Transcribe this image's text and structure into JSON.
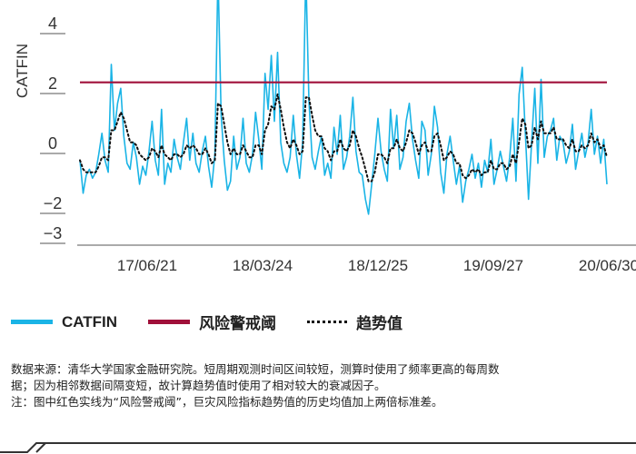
{
  "chart_data": {
    "type": "line",
    "ylabel": "CATFIN",
    "yticks": [
      -3,
      -2,
      0,
      2,
      4
    ],
    "ylim": [
      -3.2,
      5
    ],
    "xticks": [
      "17/06/21",
      "18/03/24",
      "18/12/25",
      "19/09/27",
      "20/06/30"
    ],
    "threshold": {
      "name": "风险警戒阈",
      "value": 2.1,
      "color": "#a0103a"
    },
    "series": [
      {
        "name": "CATFIN",
        "color": "#1ab4e6",
        "values": [
          -0.5,
          -1.6,
          -1.0,
          -0.8,
          -1.1,
          -0.9,
          -0.3,
          0.4,
          -0.5,
          -0.9,
          2.7,
          0.5,
          1.4,
          1.9,
          0.3,
          -0.6,
          -0.8,
          0.1,
          -0.4,
          -1.3,
          -0.7,
          -1.0,
          -0.2,
          0.8,
          -0.5,
          -1.0,
          1.2,
          -1.3,
          -0.6,
          -0.9,
          0.2,
          -0.4,
          -0.8,
          0.1,
          0.9,
          -0.5,
          0.4,
          -0.6,
          -0.9,
          -0.2,
          0.3,
          -0.7,
          -1.4,
          -0.3,
          5.8,
          1.0,
          -0.5,
          -1.5,
          -1.2,
          0.3,
          -0.8,
          -0.4,
          0.9,
          -0.6,
          -0.9,
          -0.3,
          1.1,
          0.2,
          -0.8,
          2.4,
          1.2,
          3.0,
          0.8,
          3.1,
          0.1,
          -0.6,
          -0.9,
          -0.4,
          1.0,
          -0.3,
          -1.1,
          0.1,
          5.8,
          1.5,
          -0.4,
          -0.8,
          -0.2,
          0.3,
          -1.0,
          -0.6,
          -1.1,
          0.6,
          -0.3,
          1.0,
          -0.8,
          -0.4,
          0.3,
          1.6,
          -0.2,
          -0.9,
          -1.0,
          -1.8,
          -2.3,
          -1.3,
          -0.3,
          0.9,
          -0.2,
          -0.8,
          -1.2,
          1.2,
          -0.1,
          1.0,
          -0.8,
          -0.4,
          0.8,
          1.4,
          0.2,
          -0.5,
          -1.1,
          0.8,
          0.5,
          -1.0,
          -0.3,
          1.3,
          0.6,
          -0.9,
          -1.6,
          -0.3,
          0.3,
          -0.5,
          -1.3,
          -0.7,
          -1.9,
          -1.2,
          -0.8,
          -0.3,
          -1.1,
          -0.6,
          -1.4,
          -0.5,
          -0.9,
          0.2,
          -1.3,
          -0.8,
          -0.2,
          -0.7,
          -1.2,
          -0.4,
          0.9,
          -1.2,
          1.7,
          2.6,
          0.4,
          -1.8,
          0.1,
          1.9,
          -0.6,
          2.2,
          -0.4,
          0.3,
          0.5,
          0.9,
          -0.5,
          0.3,
          0.1,
          -0.6,
          -0.2,
          0.7,
          -0.8,
          -0.2,
          0.4,
          -0.4,
          0.1,
          1.2,
          -0.3,
          0.3,
          -0.6,
          0.2,
          -1.3
        ]
      },
      {
        "name": "趋势值",
        "color": "#111111",
        "values": [
          -0.5,
          -0.8,
          -0.9,
          -0.9,
          -0.9,
          -0.9,
          -0.7,
          -0.4,
          -0.4,
          -0.5,
          0.5,
          0.5,
          0.8,
          1.1,
          0.9,
          0.5,
          0.1,
          0.1,
          0.0,
          -0.3,
          -0.4,
          -0.5,
          -0.4,
          -0.1,
          -0.2,
          -0.4,
          0.0,
          -0.3,
          -0.4,
          -0.5,
          -0.3,
          -0.3,
          -0.4,
          -0.3,
          0.0,
          -0.1,
          0.0,
          -0.1,
          -0.3,
          -0.3,
          -0.1,
          -0.3,
          -0.6,
          -0.5,
          1.4,
          1.3,
          0.7,
          0.1,
          -0.3,
          -0.1,
          -0.3,
          -0.3,
          0.0,
          -0.2,
          -0.4,
          -0.4,
          -0.0,
          0.0,
          -0.3,
          0.5,
          0.7,
          1.3,
          1.2,
          1.7,
          1.2,
          0.6,
          0.1,
          -0.1,
          0.2,
          0.0,
          -0.3,
          -0.2,
          1.6,
          1.6,
          1.0,
          0.5,
          0.3,
          0.3,
          -0.1,
          -0.2,
          -0.5,
          -0.2,
          -0.2,
          0.2,
          -0.1,
          -0.2,
          -0.0,
          0.5,
          0.3,
          -0.1,
          -0.4,
          -0.8,
          -1.2,
          -1.2,
          -0.9,
          -0.3,
          -0.3,
          -0.4,
          -0.6,
          -0.1,
          -0.1,
          0.2,
          -0.1,
          -0.2,
          0.1,
          0.5,
          0.4,
          0.1,
          -0.3,
          0.0,
          0.1,
          -0.2,
          -0.2,
          0.3,
          0.4,
          0.0,
          -0.5,
          -0.4,
          -0.2,
          -0.3,
          -0.6,
          -0.6,
          -1.0,
          -1.1,
          -1.0,
          -0.8,
          -0.9,
          -0.8,
          -1.0,
          -0.9,
          -0.9,
          -0.5,
          -0.8,
          -0.8,
          -0.6,
          -0.6,
          -0.8,
          -0.7,
          -0.3,
          -0.6,
          0.1,
          0.9,
          0.7,
          -0.1,
          -0.0,
          0.6,
          0.2,
          0.8,
          0.4,
          0.4,
          0.4,
          0.6,
          0.2,
          0.2,
          0.2,
          -0.0,
          -0.1,
          0.2,
          -0.2,
          -0.2,
          0.0,
          -0.1,
          -0.0,
          0.4,
          0.1,
          0.2,
          -0.1,
          0.0,
          -0.4
        ]
      }
    ],
    "legend": {
      "placement": "bottom"
    }
  },
  "notes": {
    "line1": "数据来源：清华大学国家金融研究院。短周期观测时间区间较短，测算时使用了频率更高的每周数",
    "line2": "据；因为相邻数据间隔变短，故计算趋势值时使用了相对较大的衰减因子。",
    "line3": "注：图中红色实线为“风险警戒阈”，巨灾风险指标趋势值的历史均值加上两倍标准差。"
  }
}
